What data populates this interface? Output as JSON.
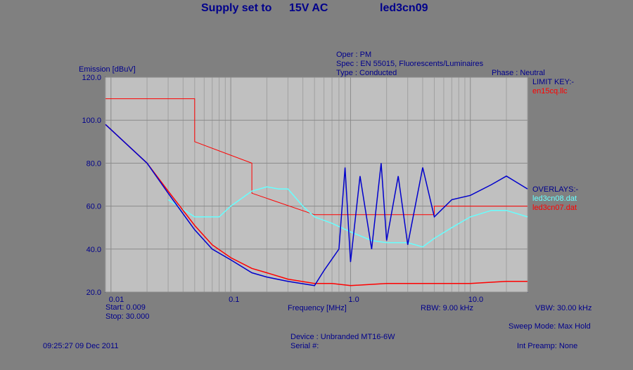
{
  "header": {
    "supply_label": "Supply set to",
    "supply_value": "15V AC",
    "test_name": "led3cn09"
  },
  "info": {
    "oper": "Oper : PM",
    "spec": "Spec : EN 55015, Fluorescents/Luminaires",
    "type": "Type : Conducted",
    "phase": "Phase : Neutral"
  },
  "legend": {
    "limit_title": "LIMIT KEY:-",
    "limit_file": "en15cq.llc",
    "overlays_title": "OVERLAYS:-",
    "overlay1": "led3cn08.dat",
    "overlay2": "led3cn07.dat"
  },
  "footer": {
    "start": "Start: 0.009",
    "stop": "Stop: 30.000",
    "rbw": "RBW: 9.00 kHz",
    "vbw": "VBW: 30.00 kHz",
    "sweep_mode": "Sweep Mode: Max Hold",
    "timestamp": "09:25:27 09 Dec 2011",
    "device": "Device : Unbranded MT16-6W",
    "serial": "Serial #:",
    "preamp": "Int Preamp: None"
  },
  "colors": {
    "limit": "#ff0000",
    "main_trace": "#0000cc",
    "overlay1": "#66ffff",
    "overlay2": "#ff0000",
    "plot_bg": "#c0c0c0"
  },
  "chart_data": {
    "type": "line",
    "title": "",
    "xlabel": "Frequency [MHz]",
    "ylabel": "Emission [dBuV]",
    "xscale": "log",
    "xlim": [
      0.009,
      30
    ],
    "ylim": [
      20,
      120
    ],
    "x_tick_labels": [
      "0.01",
      "0.1",
      "1.0",
      "10.0"
    ],
    "x_ticks": [
      0.01,
      0.1,
      1,
      10
    ],
    "y_ticks": [
      20,
      40,
      60,
      80,
      100,
      120
    ],
    "y_tick_labels": [
      "20.0",
      "40.0",
      "60.0",
      "80.0",
      "100.0",
      "120.0"
    ],
    "grid": true,
    "series": [
      {
        "name": "en15cq.llc",
        "role": "limit",
        "x": [
          0.009,
          0.05,
          0.05,
          0.15,
          0.15,
          0.5,
          5,
          5,
          30
        ],
        "y": [
          110,
          110,
          90,
          80,
          66,
          56,
          56,
          60,
          60
        ]
      },
      {
        "name": "led3cn08.dat",
        "role": "overlay",
        "x": [
          0.03,
          0.05,
          0.08,
          0.1,
          0.15,
          0.2,
          0.25,
          0.3,
          0.4,
          0.5,
          0.7,
          1.0,
          1.5,
          2.0,
          3.0,
          4.0,
          5.0,
          7.0,
          10,
          15,
          20,
          30
        ],
        "y": [
          63,
          55,
          55,
          60,
          67,
          69,
          68,
          68,
          60,
          55,
          52,
          48,
          44,
          43,
          43,
          41,
          45,
          50,
          55,
          58,
          58,
          55
        ]
      },
      {
        "name": "led3cn07.dat",
        "role": "overlay",
        "x": [
          0.009,
          0.02,
          0.03,
          0.05,
          0.07,
          0.1,
          0.15,
          0.2,
          0.3,
          0.5,
          0.7,
          1.0,
          2.0,
          5.0,
          10,
          20,
          30
        ],
        "y": [
          98,
          80,
          67,
          51,
          42,
          36,
          31,
          29,
          26,
          24,
          24,
          23,
          24,
          24,
          24,
          25,
          25
        ]
      },
      {
        "name": "led3cn09",
        "role": "measurement",
        "x": [
          0.009,
          0.02,
          0.03,
          0.05,
          0.07,
          0.1,
          0.15,
          0.2,
          0.3,
          0.5,
          0.6,
          0.8,
          0.9,
          1.0,
          1.2,
          1.5,
          1.8,
          2.0,
          2.5,
          3.0,
          4.0,
          5.0,
          7.0,
          10,
          15,
          20,
          30
        ],
        "y": [
          98,
          80,
          66,
          49,
          40,
          35,
          29,
          27,
          25,
          23,
          30,
          40,
          78,
          34,
          74,
          40,
          80,
          44,
          74,
          42,
          78,
          55,
          63,
          65,
          70,
          74,
          68
        ]
      }
    ]
  }
}
